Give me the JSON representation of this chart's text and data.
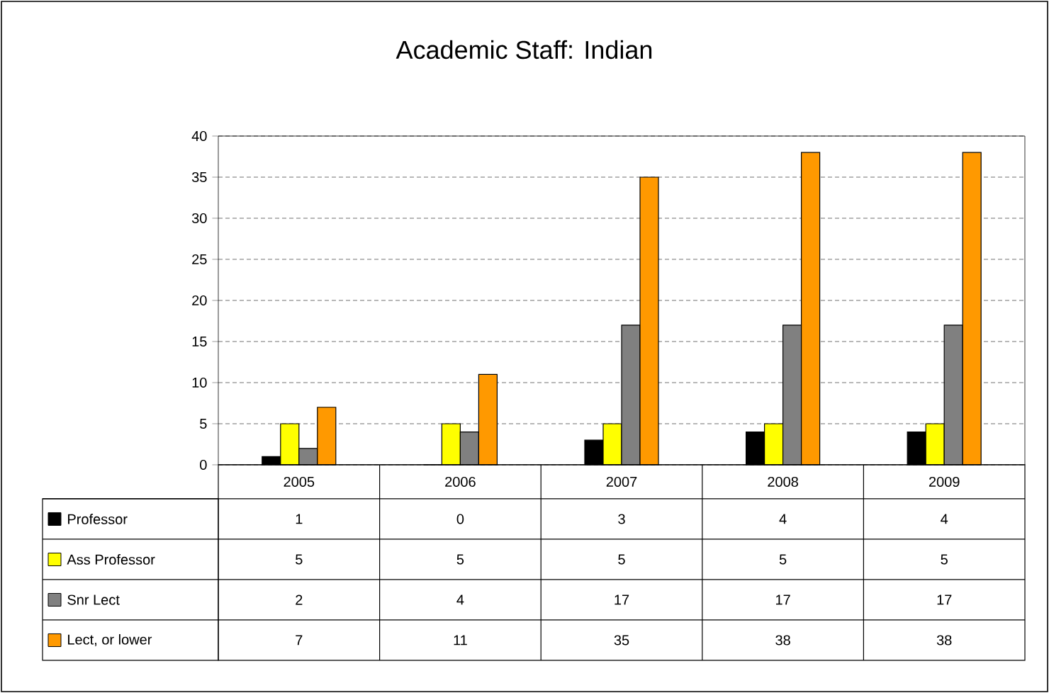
{
  "chart_data": {
    "type": "bar",
    "title": "Academic Staff: Indian",
    "categories": [
      "2005",
      "2006",
      "2007",
      "2008",
      "2009"
    ],
    "series": [
      {
        "name": "Professor",
        "color": "#000000",
        "values": [
          1,
          0,
          3,
          4,
          4
        ]
      },
      {
        "name": "Ass Professor",
        "color": "#ffff00",
        "values": [
          5,
          5,
          5,
          5,
          5
        ]
      },
      {
        "name": "Snr Lect",
        "color": "#808080",
        "values": [
          2,
          4,
          17,
          17,
          17
        ]
      },
      {
        "name": "Lect, or lower",
        "color": "#ff9900",
        "values": [
          7,
          11,
          35,
          38,
          38
        ]
      }
    ],
    "ylim": [
      0,
      40
    ],
    "yticks": [
      0,
      5,
      10,
      15,
      20,
      25,
      30,
      35,
      40
    ],
    "grid": "y",
    "legend": "bottom",
    "data_labels": true
  }
}
